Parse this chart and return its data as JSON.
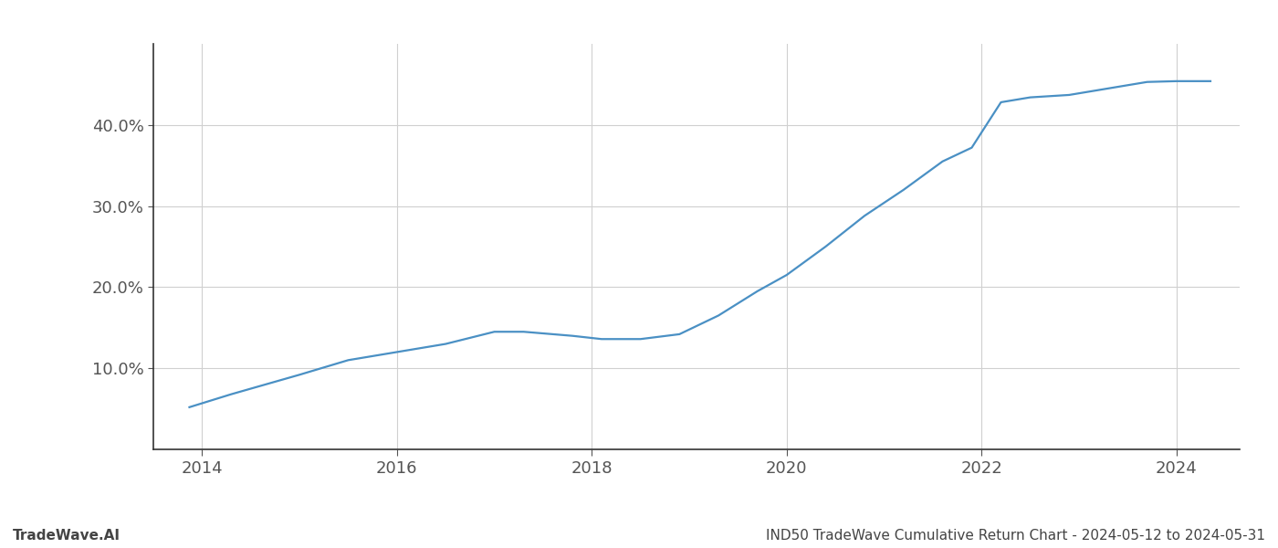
{
  "x_values": [
    2013.87,
    2014.3,
    2015.0,
    2015.5,
    2016.0,
    2016.5,
    2017.0,
    2017.3,
    2017.8,
    2018.1,
    2018.5,
    2018.9,
    2019.3,
    2019.7,
    2020.0,
    2020.4,
    2020.8,
    2021.2,
    2021.6,
    2021.9,
    2022.2,
    2022.5,
    2022.9,
    2023.3,
    2023.7,
    2024.0,
    2024.35
  ],
  "y_values": [
    5.2,
    6.8,
    9.2,
    11.0,
    12.0,
    13.0,
    14.5,
    14.5,
    14.0,
    13.6,
    13.6,
    14.2,
    16.5,
    19.5,
    21.5,
    25.0,
    28.8,
    32.0,
    35.5,
    37.2,
    42.8,
    43.4,
    43.7,
    44.5,
    45.3,
    45.4,
    45.4
  ],
  "line_color": "#4a90c4",
  "line_width": 1.6,
  "xlim": [
    2013.5,
    2024.65
  ],
  "ylim": [
    0,
    50
  ],
  "ytick_values": [
    10.0,
    20.0,
    30.0,
    40.0
  ],
  "ytick_labels": [
    "10.0%",
    "20.0%",
    "30.0%",
    "40.0%"
  ],
  "xtick_values": [
    2014,
    2016,
    2018,
    2020,
    2022,
    2024
  ],
  "xtick_labels": [
    "2014",
    "2016",
    "2018",
    "2020",
    "2022",
    "2024"
  ],
  "grid_color": "#d0d0d0",
  "background_color": "#ffffff",
  "footer_left": "TradeWave.AI",
  "footer_right": "IND50 TradeWave Cumulative Return Chart - 2024-05-12 to 2024-05-31",
  "footer_fontsize": 11,
  "tick_fontsize": 13,
  "spine_color": "#333333"
}
